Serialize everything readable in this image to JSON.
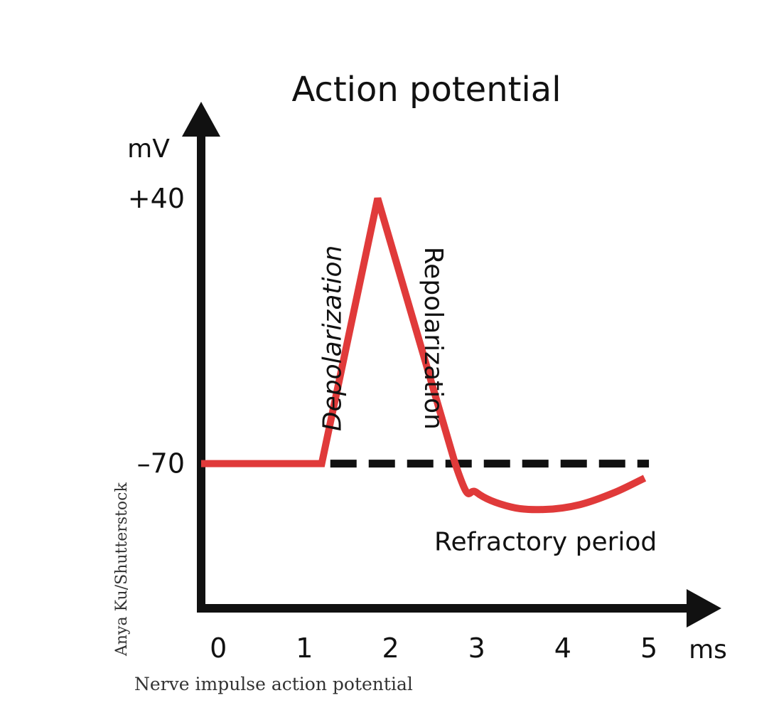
{
  "chart_data": {
    "type": "line",
    "title": "Action potential",
    "ylabel": "mV",
    "xlabel": "ms",
    "y_ticks": [
      {
        "value": 40,
        "label": "+40"
      },
      {
        "value": -70,
        "label": "–70"
      }
    ],
    "x_ticks": [
      {
        "value": 0,
        "label": "0"
      },
      {
        "value": 1,
        "label": "1"
      },
      {
        "value": 2,
        "label": "2"
      },
      {
        "value": 3,
        "label": "3"
      },
      {
        "value": 4,
        "label": "4"
      },
      {
        "value": 5,
        "label": "5"
      }
    ],
    "xlim": [
      -0.2,
      5.8
    ],
    "ylim": [
      -130,
      78
    ],
    "series": [
      {
        "color": "#e03a3a",
        "points": [
          [
            -0.2,
            -70
          ],
          [
            1.2,
            -70
          ],
          [
            1.85,
            40
          ],
          [
            2.75,
            -70
          ],
          [
            3.0,
            -82
          ],
          [
            3.4,
            -88
          ],
          [
            3.8,
            -89
          ],
          [
            4.2,
            -87
          ],
          [
            4.6,
            -82
          ],
          [
            4.95,
            -76
          ]
        ]
      }
    ],
    "baseline": {
      "value": -70,
      "x_start": 1.3,
      "x_end": 5.0,
      "style": "dashed",
      "color": "#111111"
    },
    "annotations": [
      {
        "text": "Depolarization",
        "x": 1.42,
        "y": -18,
        "rotation": -90,
        "style": "italic"
      },
      {
        "text": "Repolarization",
        "x": 2.4,
        "y": -18,
        "rotation": 90,
        "style": "normal"
      },
      {
        "text": "Refractory period",
        "x": 3.8,
        "y": -106,
        "rotation": 0,
        "style": "normal"
      }
    ],
    "axis_color": "#111111"
  },
  "caption": "Nerve impulse action potential",
  "credit": "Anya Ku/Shutterstock"
}
